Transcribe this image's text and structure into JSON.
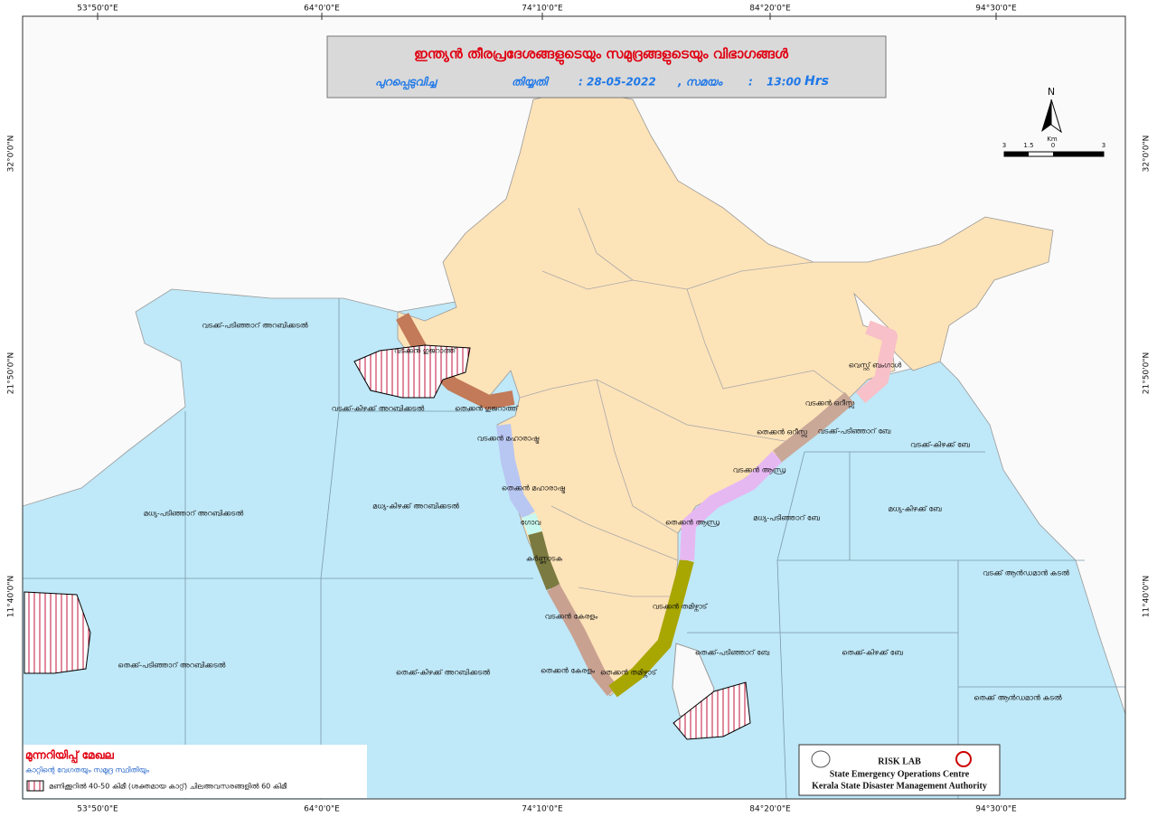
{
  "header": {
    "title": "ഇന്ത്യൻ തീരപ്രദേശങ്ങളുടെയും സമുദ്രങ്ങളുടെയും വിഭാഗങ്ങൾ",
    "issued_label": "പുറപ്പെടുവിച്ച",
    "date_label": "തിയ്യതി",
    "date": ": 28-05-2022",
    "time_label": ", സമയം",
    "time_sep": ":",
    "time": "13:00",
    "time_unit": "Hrs"
  },
  "grid_labels": {
    "longitudes": [
      "53°50'0\"E",
      "64°0'0\"E",
      "74°10'0\"E",
      "84°20'0\"E",
      "94°30'0\"E"
    ],
    "latitudes": [
      "32°0'0\"N",
      "21°50'0\"N",
      "11°40'0\"N"
    ]
  },
  "scale_bar": {
    "north": "N",
    "unit": "Km",
    "ticks": [
      "3",
      "1.5",
      "0",
      "3"
    ]
  },
  "sea_zones": [
    "വടക്ക്-പടിഞ്ഞാറ് അറബിക്കടൽ",
    "വടക്ക്-കിഴക്ക് അറബിക്കടൽ",
    "മധ്യ-പടിഞ്ഞാറ് അറബിക്കടൽ",
    "മധ്യ-കിഴക്ക് അറബിക്കടൽ",
    "തെക്ക്-പടിഞ്ഞാറ് അറബിക്കടൽ",
    "തെക്ക്-കിഴക്ക് അറബിക്കടൽ",
    "വടക്ക്-പടിഞ്ഞാറ് ബേ",
    "വടക്ക്-കിഴക്ക് ബേ",
    "മധ്യ-പടിഞ്ഞാറ് ബേ",
    "മധ്യ-കിഴക്ക് ബേ",
    "വടക്ക് ആൻഡമാൻ കടൽ",
    "തെക്ക്-പടിഞ്ഞാറ് ബേ",
    "തെക്ക്-കിഴക്ക് ബേ",
    "തെക്ക് ആൻഡമാൻ കടൽ"
  ],
  "coastal_zones": [
    "വടക്കൻ ഗുജറാത്ത്",
    "തെക്കൻ ഗുജറാത്ത്",
    "വടക്കൻ മഹാരാഷ്ട്ര",
    "തെക്കൻ മഹാരാഷ്ട്ര",
    "ഗോവ",
    "കർണ്ണാടക",
    "വടക്കൻ കേരളം",
    "തെക്കൻ കേരളം",
    "തെക്കൻ തമിഴ്നാട്",
    "വടക്കൻ തമിഴ്നാട്",
    "തെക്കൻ ആന്ധ്ര",
    "വടക്കൻ ആന്ധ്ര",
    "തെക്കൻ ഒറീസ്സ",
    "വടക്കൻ ഒറീസ്സ",
    "വെസ്റ്റ് ബംഗാൾ"
  ],
  "legend": {
    "title": "മുന്നറിയിപ്പ് മേഖല",
    "subtitle": "കാറ്റിന്റെ വേഗതയും സമുദ്ര സ്ഥിതിയും",
    "item": "മണിക്കൂറിൽ 40-50 കിമീ (ശക്തമായ കാറ്റ്) ചിലഅവസരങ്ങളിൽ 60 കിമീ"
  },
  "credits": {
    "lab": "RISK LAB",
    "line1": "State Emergency Operations Centre",
    "line2": "Kerala State Disaster Management Authority"
  }
}
